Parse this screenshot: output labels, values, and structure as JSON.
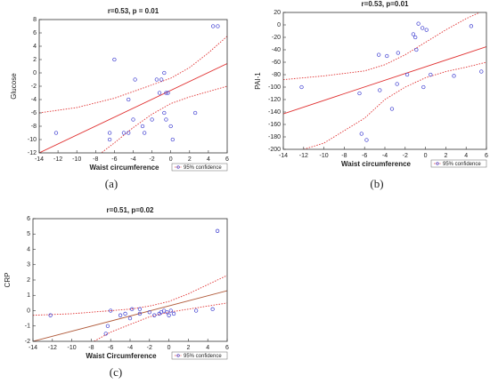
{
  "chart_data": [
    {
      "type": "scatter",
      "title": "r=0.53, p = 0.01",
      "xlabel": "Waist circumference",
      "ylabel": "Glucose",
      "caption": "(a)",
      "xlim": [
        -14,
        6
      ],
      "ylim": [
        -12,
        8
      ],
      "xticks": [
        -14,
        -12,
        -10,
        -8,
        -6,
        -4,
        -2,
        0,
        2,
        4,
        6
      ],
      "yticks": [
        -12,
        -10,
        -8,
        -6,
        -4,
        -2,
        0,
        2,
        4,
        6,
        8
      ],
      "series": [
        {
          "color": "#3b3bd0",
          "x": [
            -12.2,
            -6.5,
            -6.5,
            -6,
            -5,
            -4.5,
            -4.5,
            -4,
            -3.8,
            -3,
            -2.8,
            -2,
            -1.5,
            -1,
            -0.7,
            -0.5,
            -0.3,
            -0.7,
            -0.5,
            0,
            0.2,
            2.6,
            4.5,
            5,
            -1.2
          ],
          "values": [
            -9,
            -10,
            -9,
            2,
            -9,
            -4,
            -9,
            -7,
            -1,
            -8,
            -9,
            -7,
            -1,
            -1,
            0,
            -3,
            -3,
            -6,
            -7,
            -8,
            -10,
            -6,
            7,
            7,
            -3
          ]
        }
      ],
      "fit": {
        "color": "#e03030",
        "x": [
          -14,
          6
        ],
        "values": [
          -12,
          1.4
        ]
      },
      "confidence": {
        "name": "95% confidence",
        "color": "#e03030",
        "x": [
          -14,
          -10,
          -6,
          -4,
          -2,
          0,
          2,
          4,
          6
        ],
        "upper": [
          -6,
          -5.2,
          -3.8,
          -2.8,
          -1.8,
          -0.8,
          0.8,
          3,
          5.5
        ],
        "lower": [
          -18,
          -14.8,
          -10.5,
          -8.2,
          -6.2,
          -4.6,
          -3.6,
          -2.8,
          -2
        ]
      }
    },
    {
      "type": "scatter",
      "title": "r=0.53, p=0.01",
      "xlabel": "Waist circumference",
      "ylabel": "PAI-1",
      "caption": "(b)",
      "xlim": [
        -14,
        6
      ],
      "ylim": [
        -200,
        20
      ],
      "xticks": [
        -14,
        -12,
        -10,
        -8,
        -6,
        -4,
        -2,
        0,
        2,
        4,
        6
      ],
      "yticks": [
        -200,
        -180,
        -160,
        -140,
        -120,
        -100,
        -80,
        -60,
        -40,
        -20,
        0,
        20
      ],
      "series": [
        {
          "color": "#3b3bd0",
          "x": [
            -12.2,
            -6.5,
            -6.3,
            -5.8,
            -4.6,
            -4.5,
            -3.8,
            -3.3,
            -2.8,
            -2.7,
            -1.8,
            -1.2,
            -1,
            -0.9,
            -0.7,
            -0.3,
            0.1,
            -0.2,
            0.5,
            2.8,
            4.5,
            5.5
          ],
          "values": [
            -100,
            -110,
            -175,
            -185,
            -48,
            -105,
            -50,
            -135,
            -95,
            -45,
            -80,
            -15,
            -20,
            -40,
            2,
            -5,
            -8,
            -100,
            -80,
            -82,
            -2,
            -75
          ]
        }
      ],
      "fit": {
        "color": "#e03030",
        "x": [
          -14,
          6
        ],
        "values": [
          -143,
          -35
        ]
      },
      "confidence": {
        "name": "95% confidence",
        "color": "#e03030",
        "x": [
          -14,
          -10,
          -6,
          -4,
          -2,
          0,
          2,
          4,
          6
        ],
        "upper": [
          -88,
          -82,
          -74,
          -64,
          -48,
          -28,
          -8,
          10,
          25
        ],
        "lower": [
          -210,
          -190,
          -150,
          -120,
          -100,
          -85,
          -75,
          -68,
          -60
        ]
      }
    },
    {
      "type": "scatter",
      "title": "r=0.51, p=0.02",
      "xlabel": "Waist Circumference",
      "ylabel": "CRP",
      "caption": "(c)",
      "xlim": [
        -14,
        6
      ],
      "ylim": [
        -2,
        6
      ],
      "xticks": [
        -14,
        -12,
        -10,
        -8,
        -6,
        -4,
        -2,
        0,
        2,
        4,
        6
      ],
      "yticks": [
        -2,
        -1,
        0,
        1,
        2,
        3,
        4,
        5,
        6
      ],
      "series": [
        {
          "color": "#3b3bd0",
          "x": [
            -12.2,
            -6.5,
            -6.3,
            -6,
            -5,
            -4.5,
            -4,
            -3.8,
            -3,
            -3,
            -2,
            -1,
            -0.8,
            -0.5,
            -0.2,
            0,
            0.2,
            0.5,
            2.8,
            4.5,
            5,
            -1.5
          ],
          "values": [
            -0.3,
            -1.5,
            -1,
            0,
            -0.3,
            -0.2,
            -0.5,
            0.1,
            0.1,
            -0.2,
            -0.1,
            -0.2,
            -0.1,
            0,
            -0.1,
            -0.3,
            0,
            -0.2,
            0,
            0.1,
            5.2,
            -0.3
          ]
        }
      ],
      "fit": {
        "color": "#b05a3a",
        "x": [
          -14,
          6
        ],
        "values": [
          -2,
          1.3
        ]
      },
      "confidence": {
        "name": "95% confidence",
        "color": "#e03030",
        "x": [
          -14,
          -10,
          -6,
          -4,
          -2,
          0,
          2,
          4,
          6
        ],
        "upper": [
          -0.3,
          -0.2,
          0,
          0.1,
          0.3,
          0.6,
          1.1,
          1.7,
          2.3
        ],
        "lower": [
          -3.7,
          -2.8,
          -1.4,
          -0.9,
          -0.4,
          -0.1,
          0.1,
          0.3,
          0.5
        ]
      }
    }
  ]
}
